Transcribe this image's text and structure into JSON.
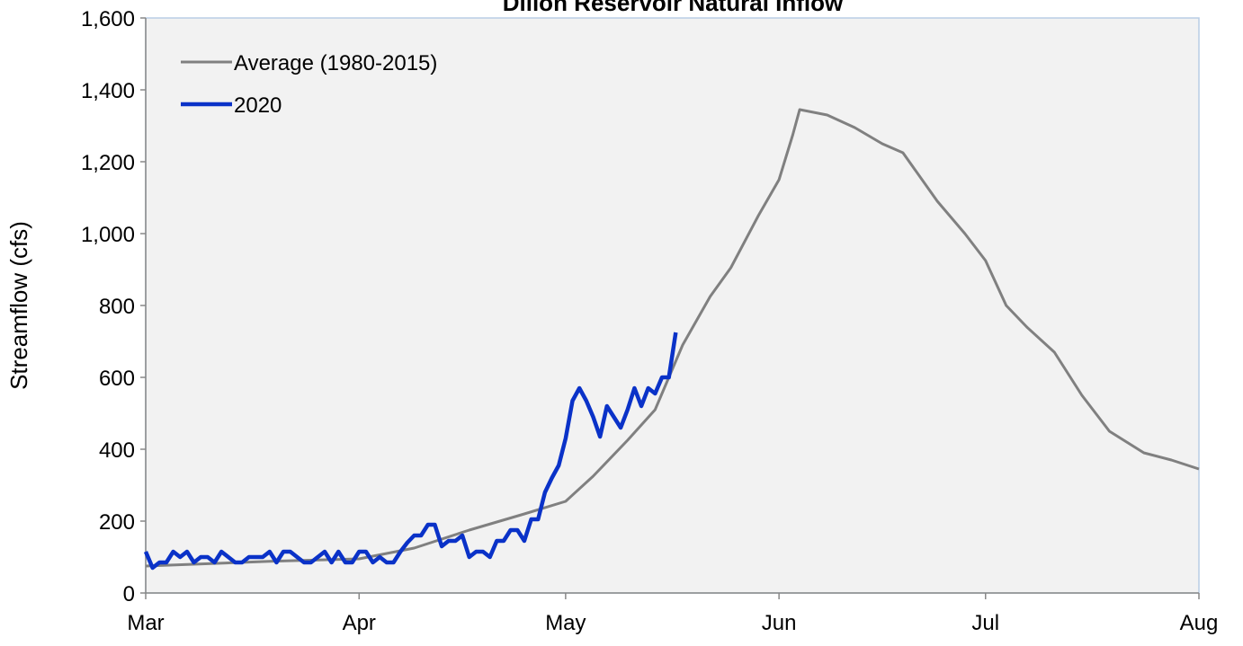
{
  "chart_data": {
    "type": "line",
    "title": "Dillon Reservoir Natural Inflow",
    "ylabel": "Streamflow (cfs)",
    "xlim": [
      0,
      153
    ],
    "xticks": [
      {
        "value": 0,
        "label": "Mar"
      },
      {
        "value": 31,
        "label": "Apr"
      },
      {
        "value": 61,
        "label": "May"
      },
      {
        "value": 92,
        "label": "Jun"
      },
      {
        "value": 122,
        "label": "Jul"
      },
      {
        "value": 153,
        "label": "Aug"
      }
    ],
    "ylim": [
      0,
      1600
    ],
    "yticks": [
      0,
      200,
      400,
      600,
      800,
      {
        "value": 1000,
        "label": "1,000"
      },
      {
        "value": 1200,
        "label": "1,200"
      },
      {
        "value": 1400,
        "label": "1,400"
      },
      {
        "value": 1600,
        "label": "1,600"
      }
    ],
    "grid": false,
    "legend": "upper left",
    "series": [
      {
        "name": "Average (1980-2015)",
        "color": "#808080",
        "x": [
          0,
          18,
          31,
          39,
          47,
          55,
          61,
          65,
          70,
          74,
          78,
          82,
          85,
          89,
          92,
          94,
          95,
          99,
          103,
          107,
          110,
          115,
          119,
          122,
          125,
          128,
          132,
          136,
          140,
          145,
          149,
          153
        ],
        "values": [
          75,
          88,
          95,
          125,
          175,
          220,
          255,
          325,
          425,
          510,
          690,
          825,
          905,
          1050,
          1150,
          1275,
          1345,
          1330,
          1295,
          1250,
          1225,
          1090,
          1000,
          925,
          800,
          740,
          670,
          550,
          450,
          390,
          370,
          345
        ]
      },
      {
        "name": "2020",
        "color": "#0a32c8",
        "x": [
          0,
          1,
          2,
          3,
          4,
          5,
          6,
          7,
          8,
          9,
          10,
          11,
          12,
          13,
          14,
          15,
          16,
          17,
          18,
          19,
          20,
          21,
          22,
          23,
          24,
          25,
          26,
          27,
          28,
          29,
          30,
          31,
          32,
          33,
          34,
          35,
          36,
          37,
          38,
          39,
          40,
          41,
          42,
          43,
          44,
          45,
          46,
          47,
          48,
          49,
          50,
          51,
          52,
          53,
          54,
          55,
          56,
          57,
          58,
          59,
          60,
          61,
          62,
          63,
          64,
          65,
          66,
          67,
          68,
          69,
          70,
          71,
          72,
          73,
          74,
          75,
          76,
          77
        ],
        "values": [
          115,
          70,
          85,
          85,
          115,
          100,
          115,
          85,
          100,
          100,
          85,
          115,
          100,
          85,
          85,
          100,
          100,
          100,
          115,
          85,
          115,
          115,
          100,
          85,
          85,
          100,
          115,
          85,
          115,
          85,
          85,
          115,
          115,
          85,
          100,
          85,
          85,
          115,
          140,
          160,
          160,
          190,
          190,
          130,
          145,
          145,
          160,
          100,
          115,
          115,
          100,
          145,
          145,
          175,
          175,
          145,
          205,
          205,
          280,
          320,
          355,
          430,
          535,
          570,
          535,
          490,
          435,
          520,
          490,
          460,
          510,
          570,
          520,
          570,
          555,
          600,
          600,
          725
        ]
      }
    ]
  }
}
